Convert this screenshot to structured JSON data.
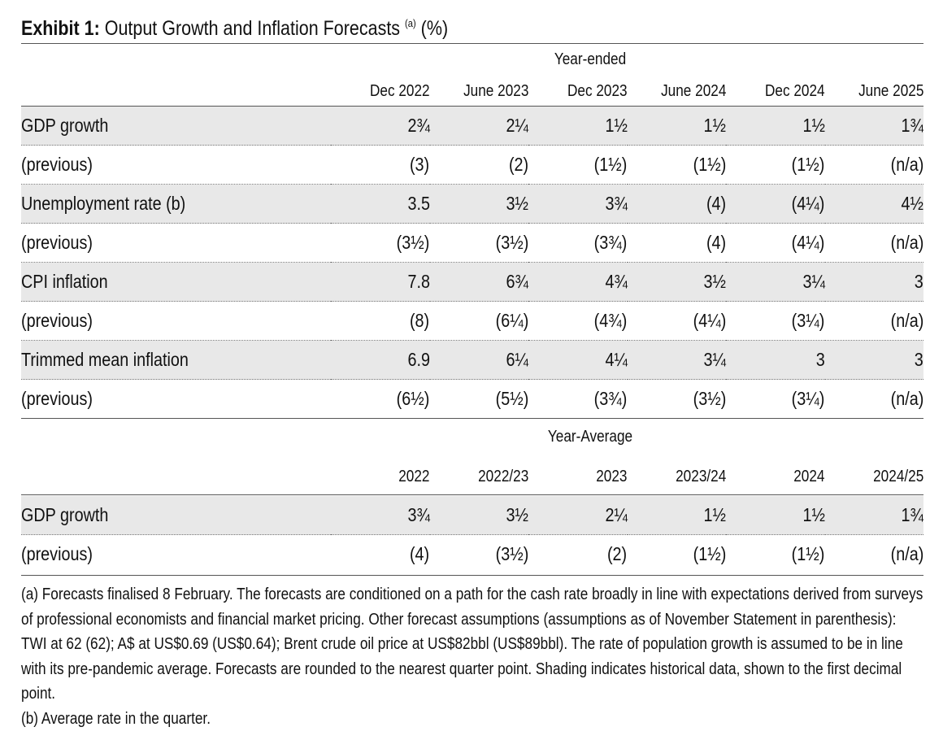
{
  "title": {
    "bold": "Exhibit 1:",
    "text": "Output Growth and Inflation Forecasts",
    "superscript": "(a)",
    "unit": "(%)"
  },
  "section1": {
    "group_header": "Year-ended",
    "columns": [
      "Dec 2022",
      "June 2023",
      "Dec 2023",
      "June 2024",
      "Dec 2024",
      "June 2025"
    ],
    "rows": [
      {
        "label": "GDP growth",
        "values": [
          "2¾",
          "2¼",
          "1½",
          "1½",
          "1½",
          "1¾"
        ],
        "shaded": true
      },
      {
        "label": "(previous)",
        "values": [
          "(3)",
          "(2)",
          "(1½)",
          "(1½)",
          "(1½)",
          "(n/a)"
        ],
        "shaded": false
      },
      {
        "label": "Unemployment rate (b)",
        "values": [
          "3.5",
          "3½",
          "3¾",
          "(4)",
          "(4¼)",
          "4½"
        ],
        "shaded": true
      },
      {
        "label": "(previous)",
        "values": [
          "(3½)",
          "(3½)",
          "(3¾)",
          "(4)",
          "(4¼)",
          "(n/a)"
        ],
        "shaded": false
      },
      {
        "label": "CPI inflation",
        "values": [
          "7.8",
          "6¾",
          "4¾",
          "3½",
          "3¼",
          "3"
        ],
        "shaded": true
      },
      {
        "label": "(previous)",
        "values": [
          "(8)",
          "(6¼)",
          "(4¾)",
          "(4¼)",
          "(3¼)",
          "(n/a)"
        ],
        "shaded": false
      },
      {
        "label": "Trimmed mean inflation",
        "values": [
          "6.9",
          "6¼",
          "4¼",
          "3¼",
          "3",
          "3"
        ],
        "shaded": true
      },
      {
        "label": "(previous)",
        "values": [
          "(6½)",
          "(5½)",
          "(3¾)",
          "(3½)",
          "(3¼)",
          "(n/a)"
        ],
        "shaded": false
      }
    ]
  },
  "section2": {
    "group_header": "Year-Average",
    "columns": [
      "2022",
      "2022/23",
      "2023",
      "2023/24",
      "2024",
      "2024/25"
    ],
    "rows": [
      {
        "label": "GDP growth",
        "values": [
          "3¾",
          "3½",
          "2¼",
          "1½",
          "1½",
          "1¾"
        ],
        "shaded": true
      },
      {
        "label": "(previous)",
        "values": [
          "(4)",
          "(3½)",
          "(2)",
          "(1½)",
          "(1½)",
          "(n/a)"
        ],
        "shaded": false
      }
    ]
  },
  "notes": [
    "(a) Forecasts finalised 8 February. The forecasts are conditioned on a path for the cash rate broadly in line with expectations derived from surveys of professional economists and financial market pricing. Other forecast assumptions (assumptions as of November Statement in parenthesis): TWI at 62 (62); A$ at US$0.69 (US$0.64); Brent crude oil price at US$82bbl (US$89bbl). The rate of population growth is assumed to be in line with its pre-pandemic average. Forecasts are rounded to the nearest quarter point. Shading indicates historical data, shown to the first decimal point.",
    "(b) Average rate in the quarter."
  ],
  "colors": {
    "shade": "#e8e8e8",
    "rule": "#555555",
    "text": "#111111"
  }
}
